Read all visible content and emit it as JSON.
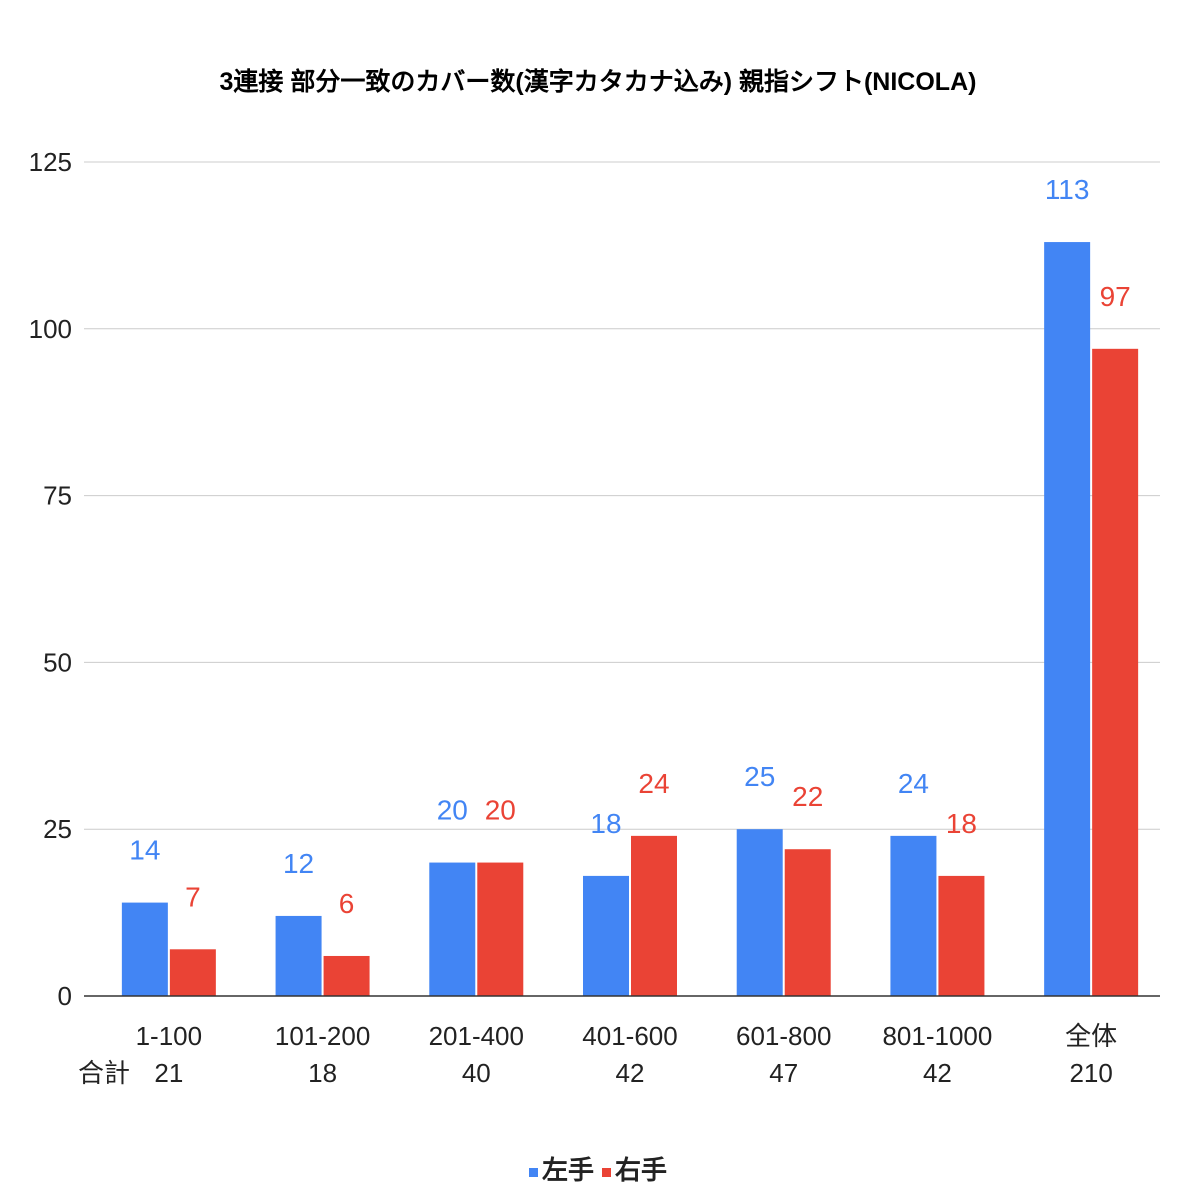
{
  "chart_data": {
    "type": "bar",
    "title": "3連接 部分一致のカバー数(漢字カタカナ込み) 親指シフト(NICOLA)",
    "categories": [
      "1-100",
      "101-200",
      "201-400",
      "401-600",
      "601-800",
      "801-1000",
      "全体"
    ],
    "totals_label": "合計",
    "totals": [
      "21",
      "18",
      "40",
      "42",
      "47",
      "42",
      "210"
    ],
    "series": [
      {
        "name": "左手",
        "color": "#4285f4",
        "values": [
          14,
          12,
          20,
          18,
          25,
          24,
          113
        ]
      },
      {
        "name": "右手",
        "color": "#ea4335",
        "values": [
          7,
          6,
          20,
          24,
          22,
          18,
          97
        ]
      }
    ],
    "ylim": [
      0,
      125
    ],
    "yticks": [
      0,
      25,
      50,
      75,
      100,
      125
    ],
    "grid": true,
    "legend_position": "bottom"
  }
}
